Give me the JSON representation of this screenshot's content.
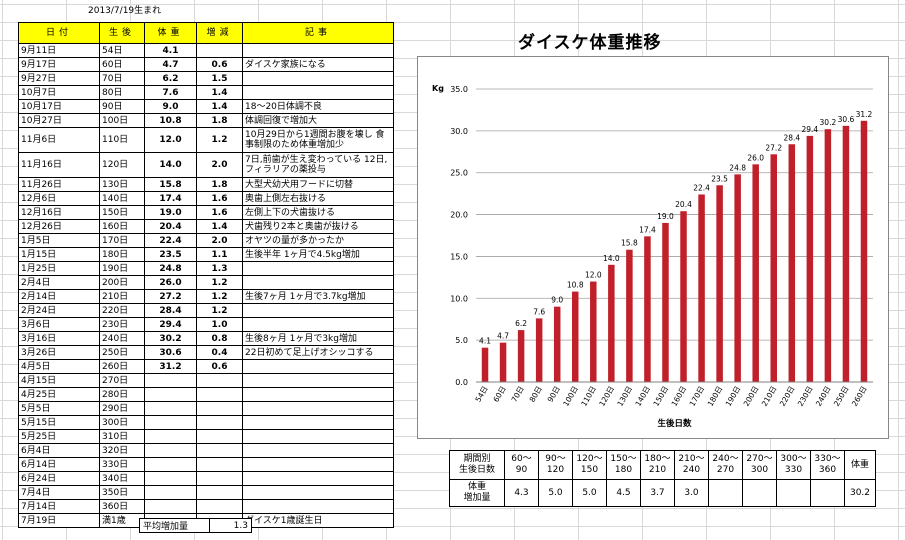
{
  "birth_note": "2013/7/19生まれ",
  "table": {
    "headers": [
      "日付",
      "生後",
      "体重",
      "増減",
      "記事"
    ],
    "rows": [
      {
        "date": "9月11日",
        "age": "54日",
        "weight": "4.1",
        "change": "",
        "note": ""
      },
      {
        "date": "9月17日",
        "age": "60日",
        "weight": "4.7",
        "change": "0.6",
        "note": "ダイスケ家族になる"
      },
      {
        "date": "9月27日",
        "age": "70日",
        "weight": "6.2",
        "change": "1.5",
        "note": ""
      },
      {
        "date": "10月7日",
        "age": "80日",
        "weight": "7.6",
        "change": "1.4",
        "note": ""
      },
      {
        "date": "10月17日",
        "age": "90日",
        "weight": "9.0",
        "change": "1.4",
        "note": "18〜20日体調不良"
      },
      {
        "date": "10月27日",
        "age": "100日",
        "weight": "10.8",
        "change": "1.8",
        "note": "体調回復で増加大"
      },
      {
        "date": "11月6日",
        "age": "110日",
        "weight": "12.0",
        "change": "1.2",
        "note": "10月29日から1週間お腹を壊し 食事制限のため体重増加少",
        "tall": true
      },
      {
        "date": "11月16日",
        "age": "120日",
        "weight": "14.0",
        "change": "2.0",
        "note": "7日,前歯が生え変わっている 12日,フィラリアの薬投与",
        "tall": true
      },
      {
        "date": "11月26日",
        "age": "130日",
        "weight": "15.8",
        "change": "1.8",
        "note": "大型犬幼犬用フードに切替"
      },
      {
        "date": "12月6日",
        "age": "140日",
        "weight": "17.4",
        "change": "1.6",
        "note": "奥歯上側左右抜ける"
      },
      {
        "date": "12月16日",
        "age": "150日",
        "weight": "19.0",
        "change": "1.6",
        "note": "左側上下の犬歯抜ける"
      },
      {
        "date": "12月26日",
        "age": "160日",
        "weight": "20.4",
        "change": "1.4",
        "note": "犬歯残り2本と奥歯が抜ける"
      },
      {
        "date": "1月5日",
        "age": "170日",
        "weight": "22.4",
        "change": "2.0",
        "note": "オヤツの量が多かったか"
      },
      {
        "date": "1月15日",
        "age": "180日",
        "weight": "23.5",
        "change": "1.1",
        "note": "生後半年 1ヶ月で4.5kg増加"
      },
      {
        "date": "1月25日",
        "age": "190日",
        "weight": "24.8",
        "change": "1.3",
        "note": ""
      },
      {
        "date": "2月4日",
        "age": "200日",
        "weight": "26.0",
        "change": "1.2",
        "note": ""
      },
      {
        "date": "2月14日",
        "age": "210日",
        "weight": "27.2",
        "change": "1.2",
        "note": "生後7ヶ月 1ヶ月で3.7kg増加"
      },
      {
        "date": "2月24日",
        "age": "220日",
        "weight": "28.4",
        "change": "1.2",
        "note": ""
      },
      {
        "date": "3月6日",
        "age": "230日",
        "weight": "29.4",
        "change": "1.0",
        "note": ""
      },
      {
        "date": "3月16日",
        "age": "240日",
        "weight": "30.2",
        "change": "0.8",
        "note": "生後8ヶ月 1ヶ月で3kg増加"
      },
      {
        "date": "3月26日",
        "age": "250日",
        "weight": "30.6",
        "change": "0.4",
        "note": "22日初めて足上げオシッコする"
      },
      {
        "date": "4月5日",
        "age": "260日",
        "weight": "31.2",
        "change": "0.6",
        "note": ""
      },
      {
        "date": "4月15日",
        "age": "270日",
        "weight": "",
        "change": "",
        "note": ""
      },
      {
        "date": "4月25日",
        "age": "280日",
        "weight": "",
        "change": "",
        "note": ""
      },
      {
        "date": "5月5日",
        "age": "290日",
        "weight": "",
        "change": "",
        "note": ""
      },
      {
        "date": "5月15日",
        "age": "300日",
        "weight": "",
        "change": "",
        "note": ""
      },
      {
        "date": "5月25日",
        "age": "310日",
        "weight": "",
        "change": "",
        "note": ""
      },
      {
        "date": "6月4日",
        "age": "320日",
        "weight": "",
        "change": "",
        "note": ""
      },
      {
        "date": "6月14日",
        "age": "330日",
        "weight": "",
        "change": "",
        "note": ""
      },
      {
        "date": "6月24日",
        "age": "340日",
        "weight": "",
        "change": "",
        "note": ""
      },
      {
        "date": "7月4日",
        "age": "350日",
        "weight": "",
        "change": "",
        "note": ""
      },
      {
        "date": "7月14日",
        "age": "360日",
        "weight": "",
        "change": "",
        "note": ""
      },
      {
        "date": "7月19日",
        "age": "満1歳",
        "weight": "",
        "change": "",
        "note": "ダイスケ1歳誕生日"
      }
    ],
    "avg_label": "平均増加量",
    "avg_value": "1.3"
  },
  "summary": {
    "period_header": [
      "期間別",
      "生後日数"
    ],
    "weight_header": [
      "体重",
      "増加量"
    ],
    "periods": [
      [
        "60〜",
        "90"
      ],
      [
        "90〜",
        "120"
      ],
      [
        "120〜",
        "150"
      ],
      [
        "150〜",
        "180"
      ],
      [
        "180〜",
        "210"
      ],
      [
        "210〜",
        "240"
      ],
      [
        "240〜",
        "270"
      ],
      [
        "270〜",
        "300"
      ],
      [
        "300〜",
        "330"
      ],
      [
        "330〜",
        "360"
      ]
    ],
    "gains": [
      "4.3",
      "5.0",
      "5.0",
      "4.5",
      "3.7",
      "3.0",
      "",
      "",
      "",
      ""
    ],
    "final_header": "体重",
    "final_value": "30.2"
  },
  "chart_data": {
    "type": "bar",
    "title": "ダイスケ体重推移",
    "ylabel": "Kg",
    "xlabel": "生後日数",
    "ylim": [
      0,
      35
    ],
    "yticks": [
      "0.0",
      "5.0",
      "10.0",
      "15.0",
      "20.0",
      "25.0",
      "30.0",
      "35.0"
    ],
    "grid": true,
    "color": "#c0202a",
    "categories": [
      "54日",
      "60日",
      "70日",
      "80日",
      "90日",
      "100日",
      "110日",
      "120日",
      "130日",
      "140日",
      "150日",
      "160日",
      "170日",
      "180日",
      "190日",
      "200日",
      "210日",
      "220日",
      "230日",
      "240日",
      "250日",
      "260日"
    ],
    "values": [
      4.1,
      4.7,
      6.2,
      7.6,
      9.0,
      10.8,
      12.0,
      14.0,
      15.8,
      17.4,
      19.0,
      20.4,
      22.4,
      23.5,
      24.8,
      26.0,
      27.2,
      28.4,
      29.4,
      30.2,
      30.6,
      31.2
    ]
  }
}
